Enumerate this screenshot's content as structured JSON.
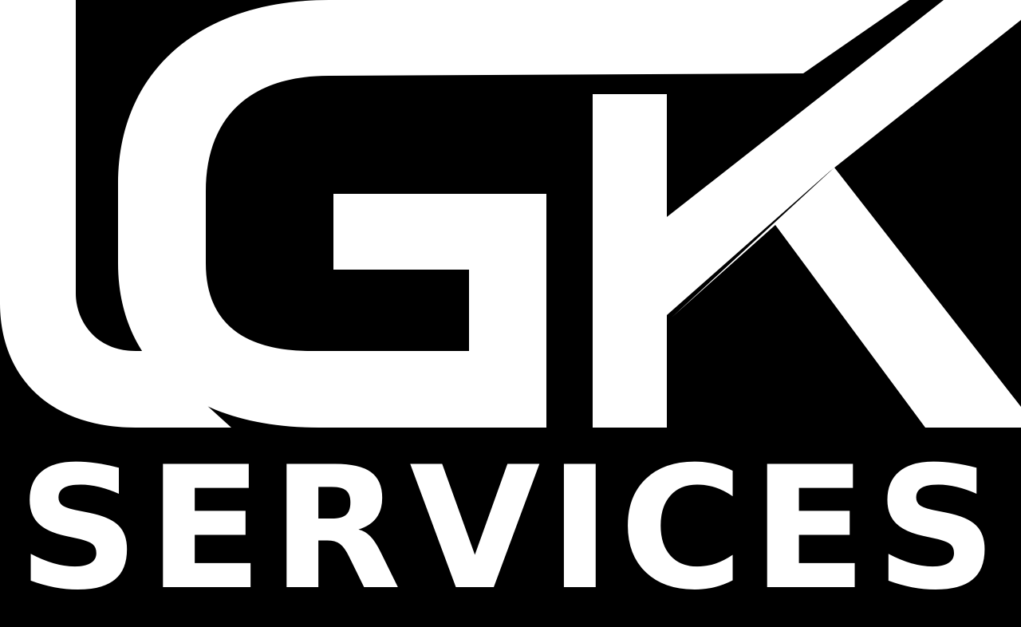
{
  "logo": {
    "monogram": "LGK",
    "wordmark": "SERVICES",
    "foreground_color": "#FFFFFF",
    "background_color": "#000000"
  }
}
